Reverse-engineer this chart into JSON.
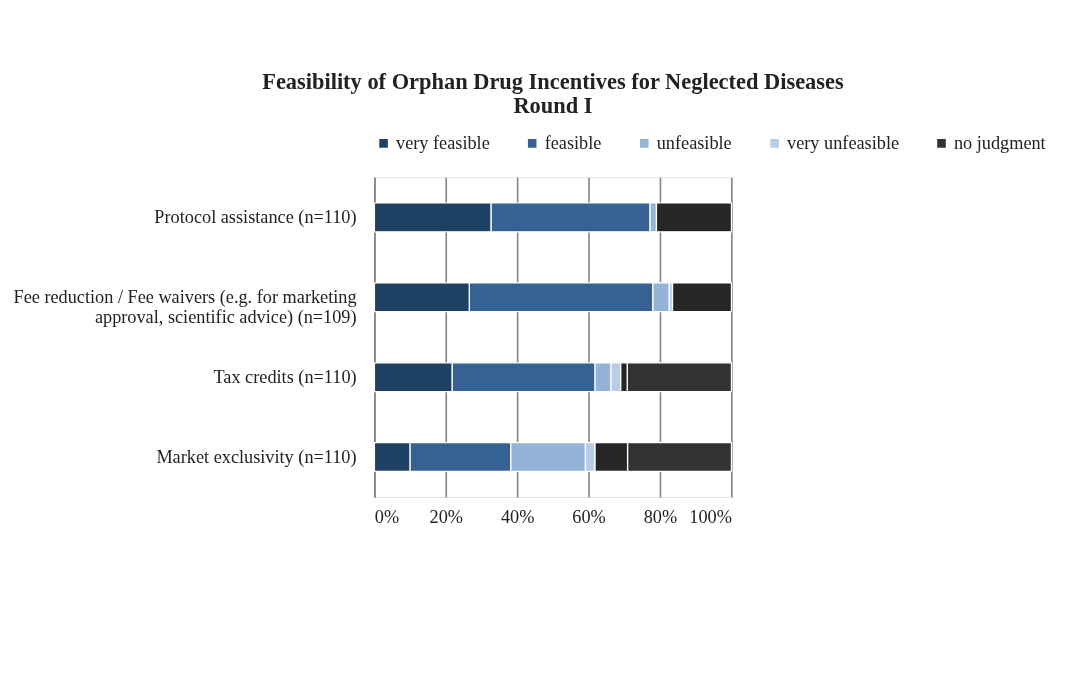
{
  "chart_data": {
    "type": "bar",
    "orientation": "horizontal",
    "stacked": true,
    "title": "Feasibility of Orphan Drug Incentives for Neglected Diseases\nRound I",
    "categories": [
      "Protocol assistance  (n=110)",
      "Fee reduction / Fee waivers (e.g. for marketing\napproval, scientific advice) (n=109)",
      "Tax credits  (n=110)",
      "Market exclusivity (n=110)"
    ],
    "series": [
      {
        "name": "very feasible",
        "color": "#1f4164",
        "values": [
          32.7,
          26.6,
          21.8,
          10.0
        ]
      },
      {
        "name": "feasible",
        "color": "#366193",
        "values": [
          44.5,
          51.4,
          40.0,
          28.2
        ]
      },
      {
        "name": "unfeasible",
        "color": "#93b3d8",
        "values": [
          1.8,
          4.6,
          4.5,
          20.9
        ]
      },
      {
        "name": "very unfeasible",
        "color": "#b9cde6",
        "values": [
          0,
          0.9,
          2.7,
          2.7
        ]
      },
      {
        "color": "#252625",
        "values": [
          21.0,
          16.5,
          1.8,
          9.1
        ]
      },
      {
        "name": "no judgment",
        "color": "#333132",
        "values": [
          0,
          0,
          29.2,
          29.1
        ]
      }
    ],
    "xlim": [
      0,
      100
    ],
    "xticks": [
      {
        "value": 0,
        "label": "0%"
      },
      {
        "value": 20,
        "label": "20%"
      },
      {
        "value": 40,
        "label": "40%"
      },
      {
        "value": 60,
        "label": "60%"
      },
      {
        "value": 80,
        "label": "80%"
      },
      {
        "value": 100,
        "label": "100%"
      }
    ],
    "grid": "x",
    "legend": "top"
  }
}
